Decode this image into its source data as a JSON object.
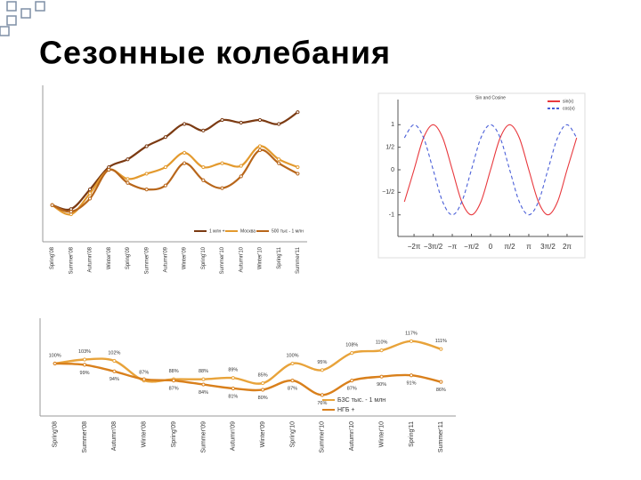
{
  "slide": {
    "title": "Сезонные колебания"
  },
  "chart_data": [
    {
      "type": "line",
      "categories": [
        "Spring'08",
        "Summer'08",
        "Autumn'08",
        "Winter'08",
        "Spring'09",
        "Summer'09",
        "Autumn'09",
        "Winter'09",
        "Spring'10",
        "Summer'10",
        "Autumn'10",
        "Winter'10",
        "Spring'11",
        "Summer'11"
      ],
      "series": [
        {
          "name": "1 млн +",
          "color": "#7b3a12",
          "values": [
            28,
            25,
            40,
            57,
            63,
            73,
            80,
            90,
            85,
            93,
            91,
            93,
            90,
            99
          ]
        },
        {
          "name": "Москва",
          "color": "#e39a2e",
          "values": [
            28,
            21,
            37,
            55,
            48,
            52,
            57,
            68,
            57,
            60,
            58,
            73,
            63,
            57
          ]
        },
        {
          "name": "500 тыс - 1 млн",
          "color": "#b8661a",
          "values": [
            28,
            23,
            33,
            55,
            45,
            40,
            43,
            60,
            47,
            41,
            50,
            70,
            60,
            52
          ]
        }
      ],
      "ylim": [
        0,
        110
      ],
      "legend": "bottom"
    },
    {
      "type": "line",
      "title": "Sin and Cosine",
      "x": [
        -7.07,
        -6.28,
        -5.5,
        -4.71,
        -3.93,
        -3.14,
        -2.36,
        -1.57,
        -0.79,
        0,
        0.79,
        1.57,
        2.36,
        3.14,
        3.93,
        4.71,
        5.5,
        6.28,
        7.07
      ],
      "series": [
        {
          "name": "sin(x)",
          "color": "#e8383d",
          "dash": false,
          "values": [
            -0.71,
            0,
            0.71,
            1,
            0.71,
            0,
            -0.71,
            -1,
            -0.71,
            0,
            0.71,
            1,
            0.71,
            0,
            -0.71,
            -1,
            -0.71,
            0,
            0.71
          ]
        },
        {
          "name": "cos(x)",
          "color": "#4a5fd8",
          "dash": true,
          "values": [
            0.71,
            1,
            0.71,
            0,
            -0.71,
            -1,
            -0.71,
            0,
            0.71,
            1,
            0.71,
            0,
            -0.71,
            -1,
            -0.71,
            0,
            0.71,
            1,
            0.71
          ]
        }
      ],
      "xlim": [
        -7.6,
        7.6
      ],
      "ylim": [
        -1.4,
        1.4
      ],
      "xticks": [
        {
          "value": -6.28,
          "label": "−2π"
        },
        {
          "value": -4.71,
          "label": "−3π/2"
        },
        {
          "value": -3.14,
          "label": "−π"
        },
        {
          "value": -1.57,
          "label": "−π/2"
        },
        0,
        {
          "value": 1.57,
          "label": "π/2"
        },
        {
          "value": 3.14,
          "label": "π"
        },
        {
          "value": 4.71,
          "label": "3π/2"
        },
        {
          "value": 6.28,
          "label": "2π"
        }
      ],
      "yticks": [
        -1,
        {
          "value": -0.5,
          "label": "−1/2"
        },
        0,
        {
          "value": 0.5,
          "label": "1/2"
        },
        1
      ],
      "legend": "upper right"
    },
    {
      "type": "line",
      "categories": [
        "Spring'08",
        "Summer'08",
        "Autumn'08",
        "Winter'08",
        "Spring'09",
        "Summer'09",
        "Autumn'09",
        "Winter'09",
        "Spring'10",
        "Summer'10",
        "Autumn'10",
        "Winter'10",
        "Spring'11",
        "Summer'11"
      ],
      "series": [
        {
          "name": "БЗС тыс. - 1 млн",
          "color": "#e8a33a",
          "values": [
            100,
            103,
            102,
            87,
            88,
            88,
            89,
            85,
            100,
            95,
            108,
            110,
            117,
            111
          ],
          "value_labels": [
            "100%",
            "103%",
            "102%",
            "87%",
            "88%",
            "88%",
            "89%",
            "85%",
            "100%",
            "95%",
            "108%",
            "110%",
            "117%",
            "111%"
          ]
        },
        {
          "name": "НГБ +",
          "color": "#d9801c",
          "values": [
            100,
            99,
            94,
            88,
            87,
            84,
            81,
            80,
            87,
            76,
            87,
            90,
            91,
            86
          ],
          "value_labels": [
            null,
            "99%",
            "94%",
            null,
            "87%",
            "84%",
            "81%",
            "80%",
            "87%",
            "76%",
            "87%",
            "90%",
            "91%",
            "86%"
          ]
        }
      ],
      "ylim": [
        60,
        125
      ],
      "legend": "lower right"
    }
  ]
}
